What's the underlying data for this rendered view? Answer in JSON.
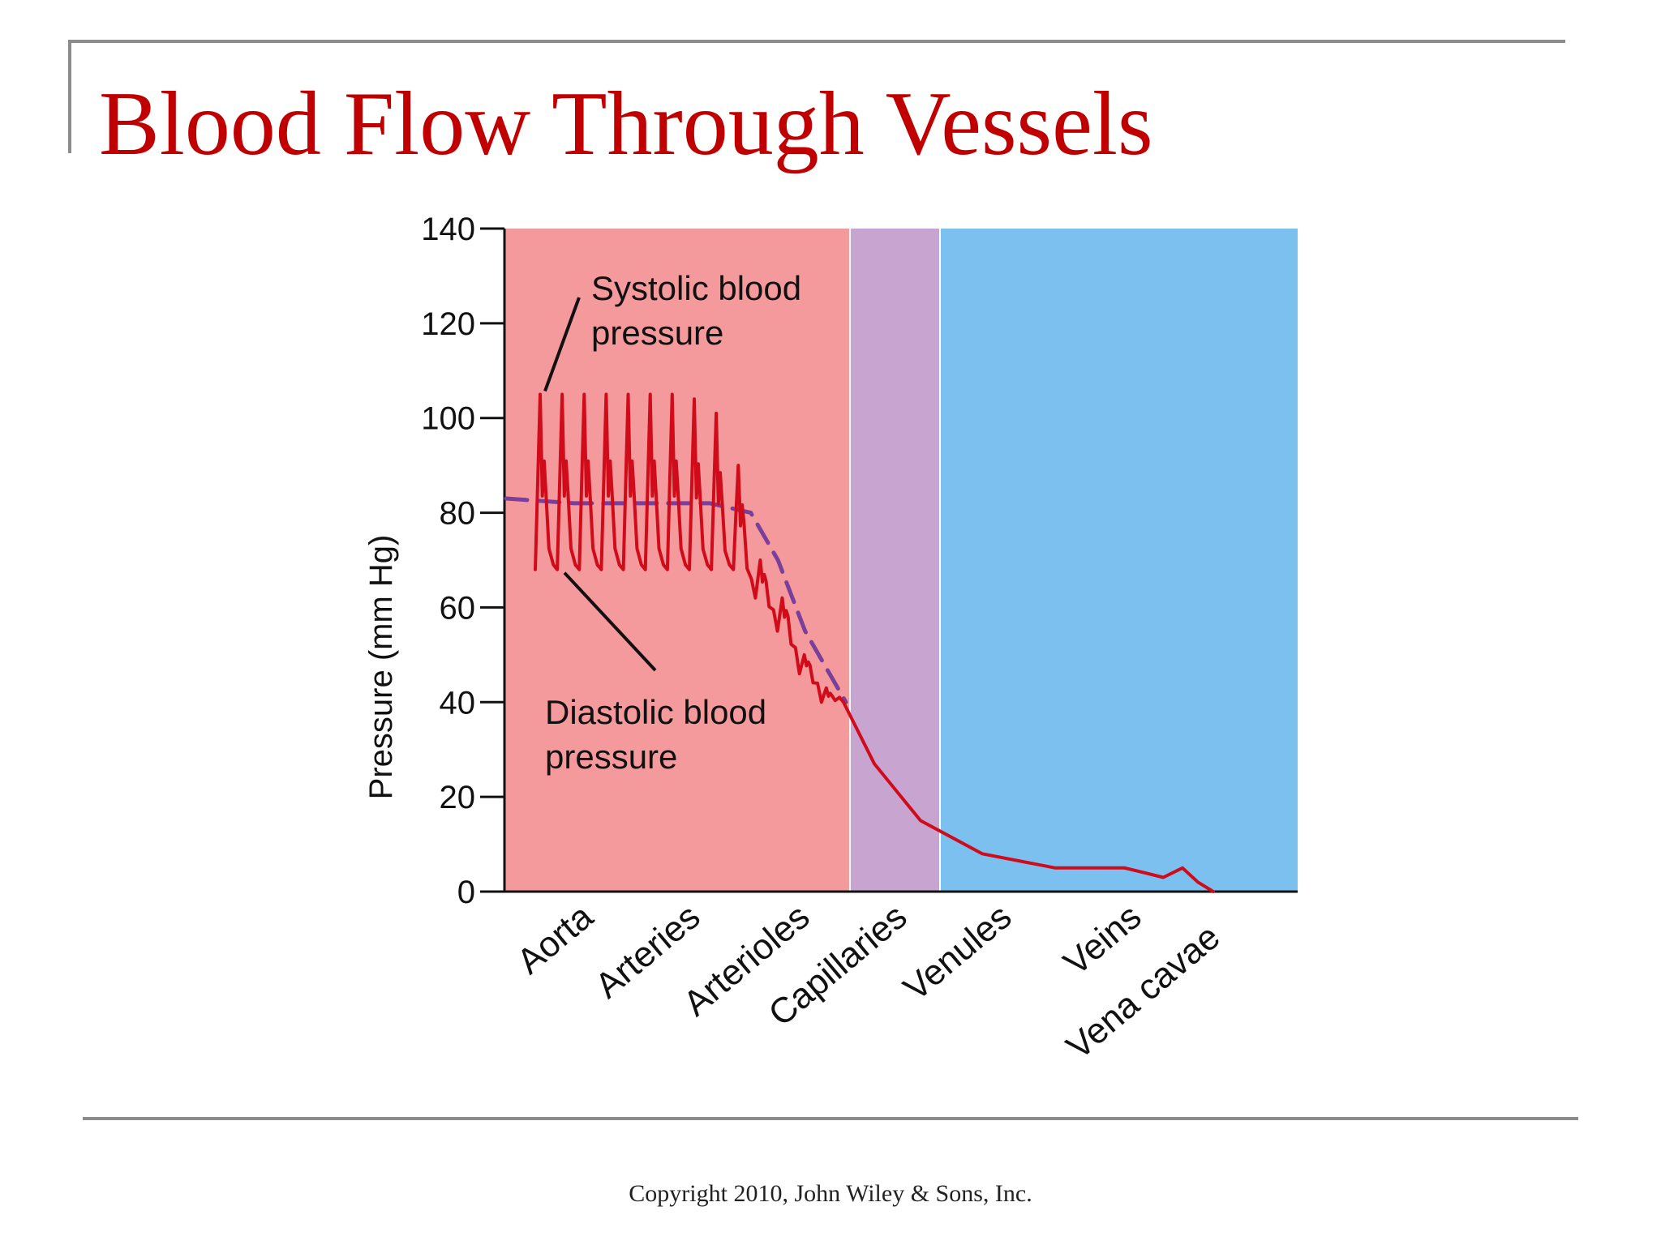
{
  "slide": {
    "title": "Blood Flow Through Vessels",
    "footer": "Copyright 2010, John Wiley & Sons, Inc."
  },
  "colors": {
    "title": "#c00000",
    "arterial_region": "#f4999c",
    "capillary_region": "#c8a4d0",
    "venous_region": "#7cc0f0",
    "pressure_line": "#d00b1a",
    "mean_pressure_line": "#7a3f9a",
    "axis": "#111111"
  },
  "chart_data": {
    "type": "line",
    "title": "",
    "xlabel": "",
    "ylabel": "Pressure (mm Hg)",
    "ylim": [
      0,
      140
    ],
    "yticks": [
      0,
      20,
      40,
      60,
      80,
      100,
      120,
      140
    ],
    "grid": false,
    "categories": [
      "Aorta",
      "Arteries",
      "Arterioles",
      "Capillaries",
      "Venules",
      "Veins",
      "Vena cavae"
    ],
    "regions": [
      {
        "segments": [
          "Aorta",
          "Arteries",
          "Arterioles"
        ],
        "color": "#f4999c"
      },
      {
        "segments": [
          "Capillaries"
        ],
        "color": "#c8a4d0"
      },
      {
        "segments": [
          "Venules",
          "Veins",
          "Vena cavae"
        ],
        "color": "#7cc0f0"
      }
    ],
    "annotations": [
      {
        "text_lines": [
          "Systolic blood",
          "pressure"
        ],
        "points_to_pressure": 105
      },
      {
        "text_lines": [
          "Diastolic blood",
          "pressure"
        ],
        "points_to_pressure": 68
      }
    ],
    "series": [
      {
        "role": "pulsatile pressure",
        "systolic_peaks": [
          105,
          105,
          105,
          105,
          105,
          105,
          105,
          104,
          101,
          90,
          70,
          62,
          50,
          43
        ],
        "diastolic_troughs": [
          68,
          68,
          68,
          68,
          68,
          68,
          68,
          68,
          68,
          68,
          62,
          55,
          46,
          40
        ],
        "damped_pressure": [
          {
            "position": 0.0,
            "pressure": 40
          },
          {
            "position": 0.08,
            "pressure": 27
          },
          {
            "position": 0.2,
            "pressure": 15
          },
          {
            "position": 0.36,
            "pressure": 8
          },
          {
            "position": 0.55,
            "pressure": 5
          },
          {
            "position": 0.73,
            "pressure": 5
          },
          {
            "position": 0.78,
            "pressure": 4
          },
          {
            "position": 0.83,
            "pressure": 3
          },
          {
            "position": 0.88,
            "pressure": 5
          },
          {
            "position": 0.92,
            "pressure": 2
          },
          {
            "position": 0.96,
            "pressure": 0
          }
        ]
      },
      {
        "role": "mean arterial pressure",
        "values": [
          {
            "position": 0.0,
            "pressure": 83
          },
          {
            "position": 0.2,
            "pressure": 82
          },
          {
            "position": 0.6,
            "pressure": 82
          },
          {
            "position": 0.72,
            "pressure": 80
          },
          {
            "position": 0.8,
            "pressure": 70
          },
          {
            "position": 0.88,
            "pressure": 55
          },
          {
            "position": 1.0,
            "pressure": 40
          }
        ]
      }
    ]
  }
}
